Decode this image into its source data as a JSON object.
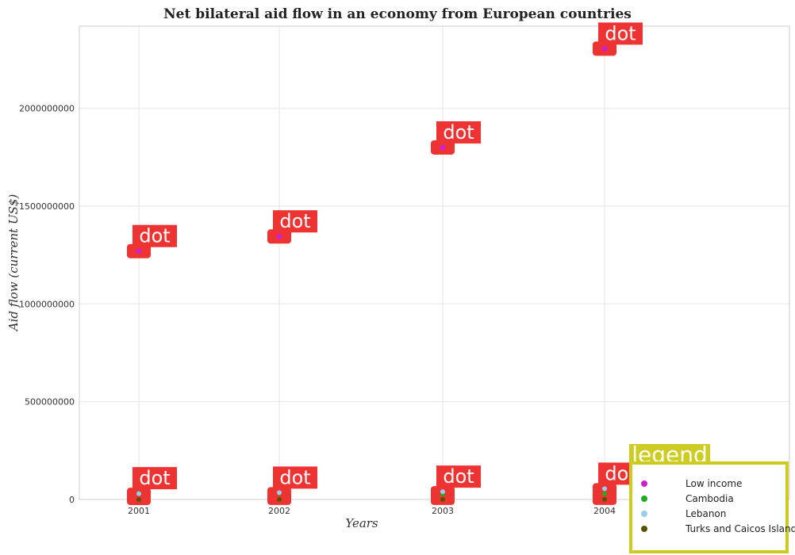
{
  "chart_data": {
    "type": "scatter",
    "title": "Net bilateral aid flow in an economy from European countries",
    "xlabel": "Years",
    "ylabel": "Aid flow (current US$)",
    "categories": [
      "2001",
      "2002",
      "2003",
      "2004"
    ],
    "ylim": [
      0,
      2420000000
    ],
    "yticks": [
      0,
      500000000,
      1000000000,
      1500000000,
      2000000000
    ],
    "ytick_labels": [
      "0",
      "500000000",
      "1000000000",
      "1500000000",
      "2000000000"
    ],
    "grid": true,
    "legend_position": "bottom-right",
    "legend_title": "legend",
    "annotation_label": "dot",
    "series": [
      {
        "name": "Low income",
        "color": "#cc22cc",
        "values": [
          1270000000,
          1345000000,
          1800000000,
          2305000000
        ]
      },
      {
        "name": "Cambodia",
        "color": "#22aa22",
        "values": [
          32000000,
          34000000,
          28000000,
          30000000
        ]
      },
      {
        "name": "Lebanon",
        "color": "#99ccee",
        "values": [
          30000000,
          35000000,
          40000000,
          55000000
        ]
      },
      {
        "name": "Turks and Caicos Islands",
        "color": "#555500",
        "values": [
          200000,
          300000,
          300000,
          400000
        ]
      }
    ]
  }
}
